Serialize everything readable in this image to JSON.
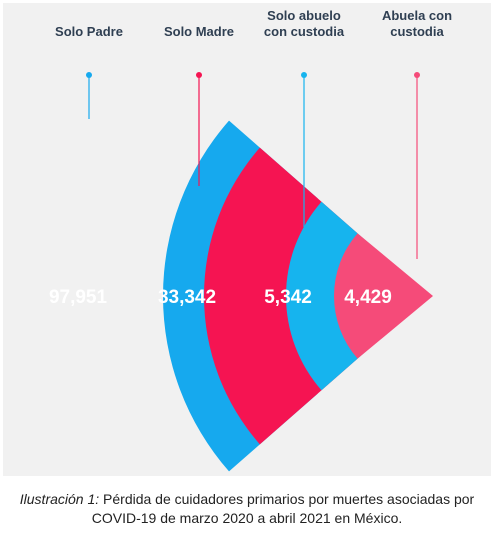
{
  "chart_data": {
    "type": "funnel",
    "categories": [
      {
        "lines": [
          "Solo Padre"
        ],
        "value": 97951,
        "display": "97,951",
        "color": "#16a9ee"
      },
      {
        "lines": [
          "Solo Madre"
        ],
        "value": 33342,
        "display": "33,342",
        "color": "#f51452"
      },
      {
        "lines": [
          "Solo abuelo",
          "con custodia"
        ],
        "value": 5342,
        "display": "5,342",
        "color": "#16b4ee"
      },
      {
        "lines": [
          "Abuela con",
          "custodia"
        ],
        "value": 4429,
        "display": "4,429",
        "color": "#f54b79"
      }
    ],
    "legend_position": "top",
    "grid": false
  },
  "caption": {
    "prefix": "Ilustración 1:",
    "text": " Pérdida de cuidadores primarios por muertes asociadas por COVID-19 de marzo 2020 a abril 2021 en México."
  }
}
